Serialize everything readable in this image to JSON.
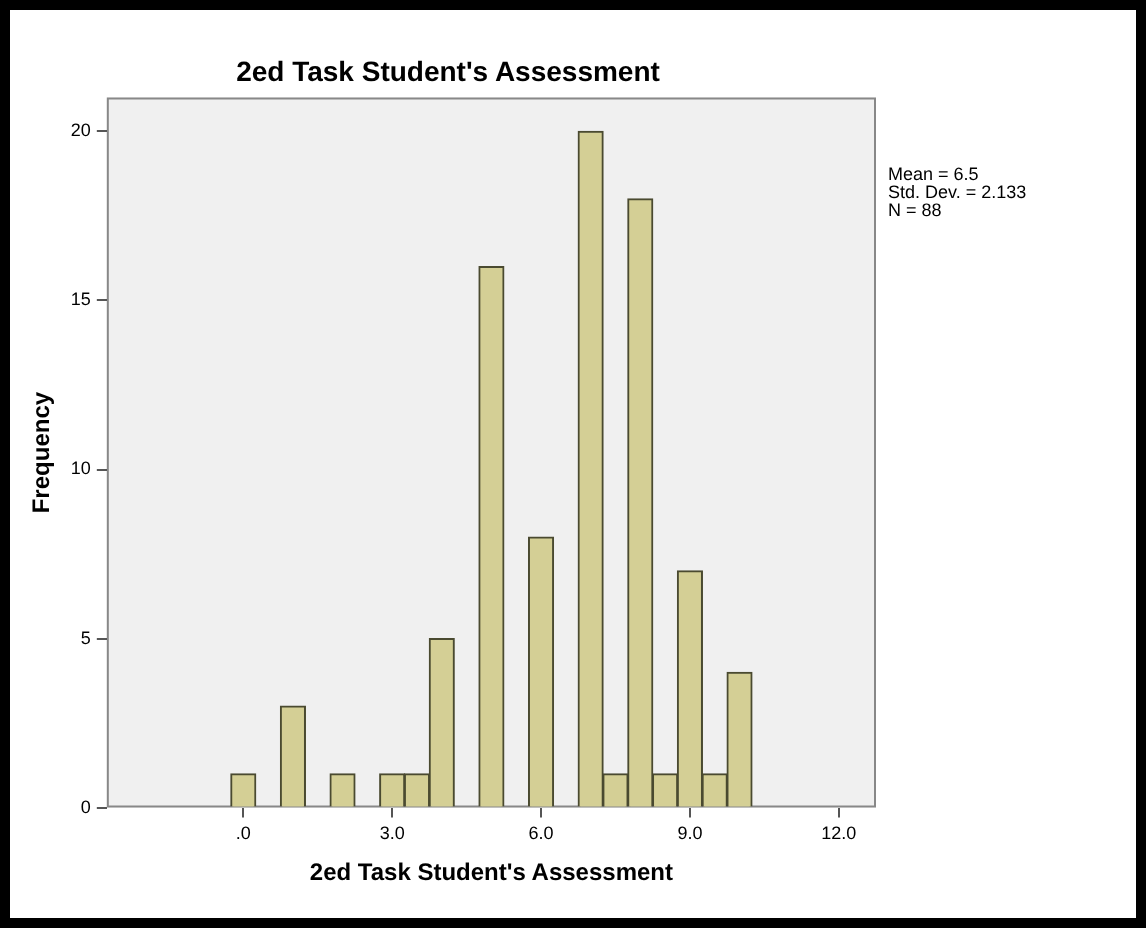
{
  "chart_data": {
    "type": "histogram",
    "title": "2ed Task Student's Assessment",
    "xlabel": "2ed Task Student's Assessment",
    "ylabel": "Frequency",
    "bins": [
      -0.25,
      0.25,
      0.75,
      1.25,
      1.75,
      2.25,
      2.75,
      3.25,
      3.75,
      4.25,
      4.75,
      5.25,
      5.75,
      6.25,
      6.75,
      7.25,
      7.75,
      8.25,
      8.75,
      9.25,
      9.75,
      10.25
    ],
    "values": [
      1,
      0,
      3,
      0,
      1,
      0,
      1,
      1,
      5,
      0,
      16,
      0,
      8,
      0,
      20,
      1,
      18,
      1,
      7,
      1,
      4
    ],
    "color": "#d4cf95",
    "xlim": [
      -2.75,
      12.75
    ],
    "xticks": [
      {
        "value": 0,
        "label": ".0"
      },
      {
        "value": 3,
        "label": "3.0"
      },
      {
        "value": 6,
        "label": "6.0"
      },
      {
        "value": 9,
        "label": "9.0"
      },
      {
        "value": 12,
        "label": "12.0"
      }
    ],
    "ylim": [
      0,
      21
    ],
    "yticks": [
      0,
      5,
      10,
      15,
      20
    ],
    "grid": false,
    "legend": false,
    "annotations": [
      "Mean = 6.5",
      "Std. Dev. = 2.133",
      "N = 88"
    ]
  }
}
